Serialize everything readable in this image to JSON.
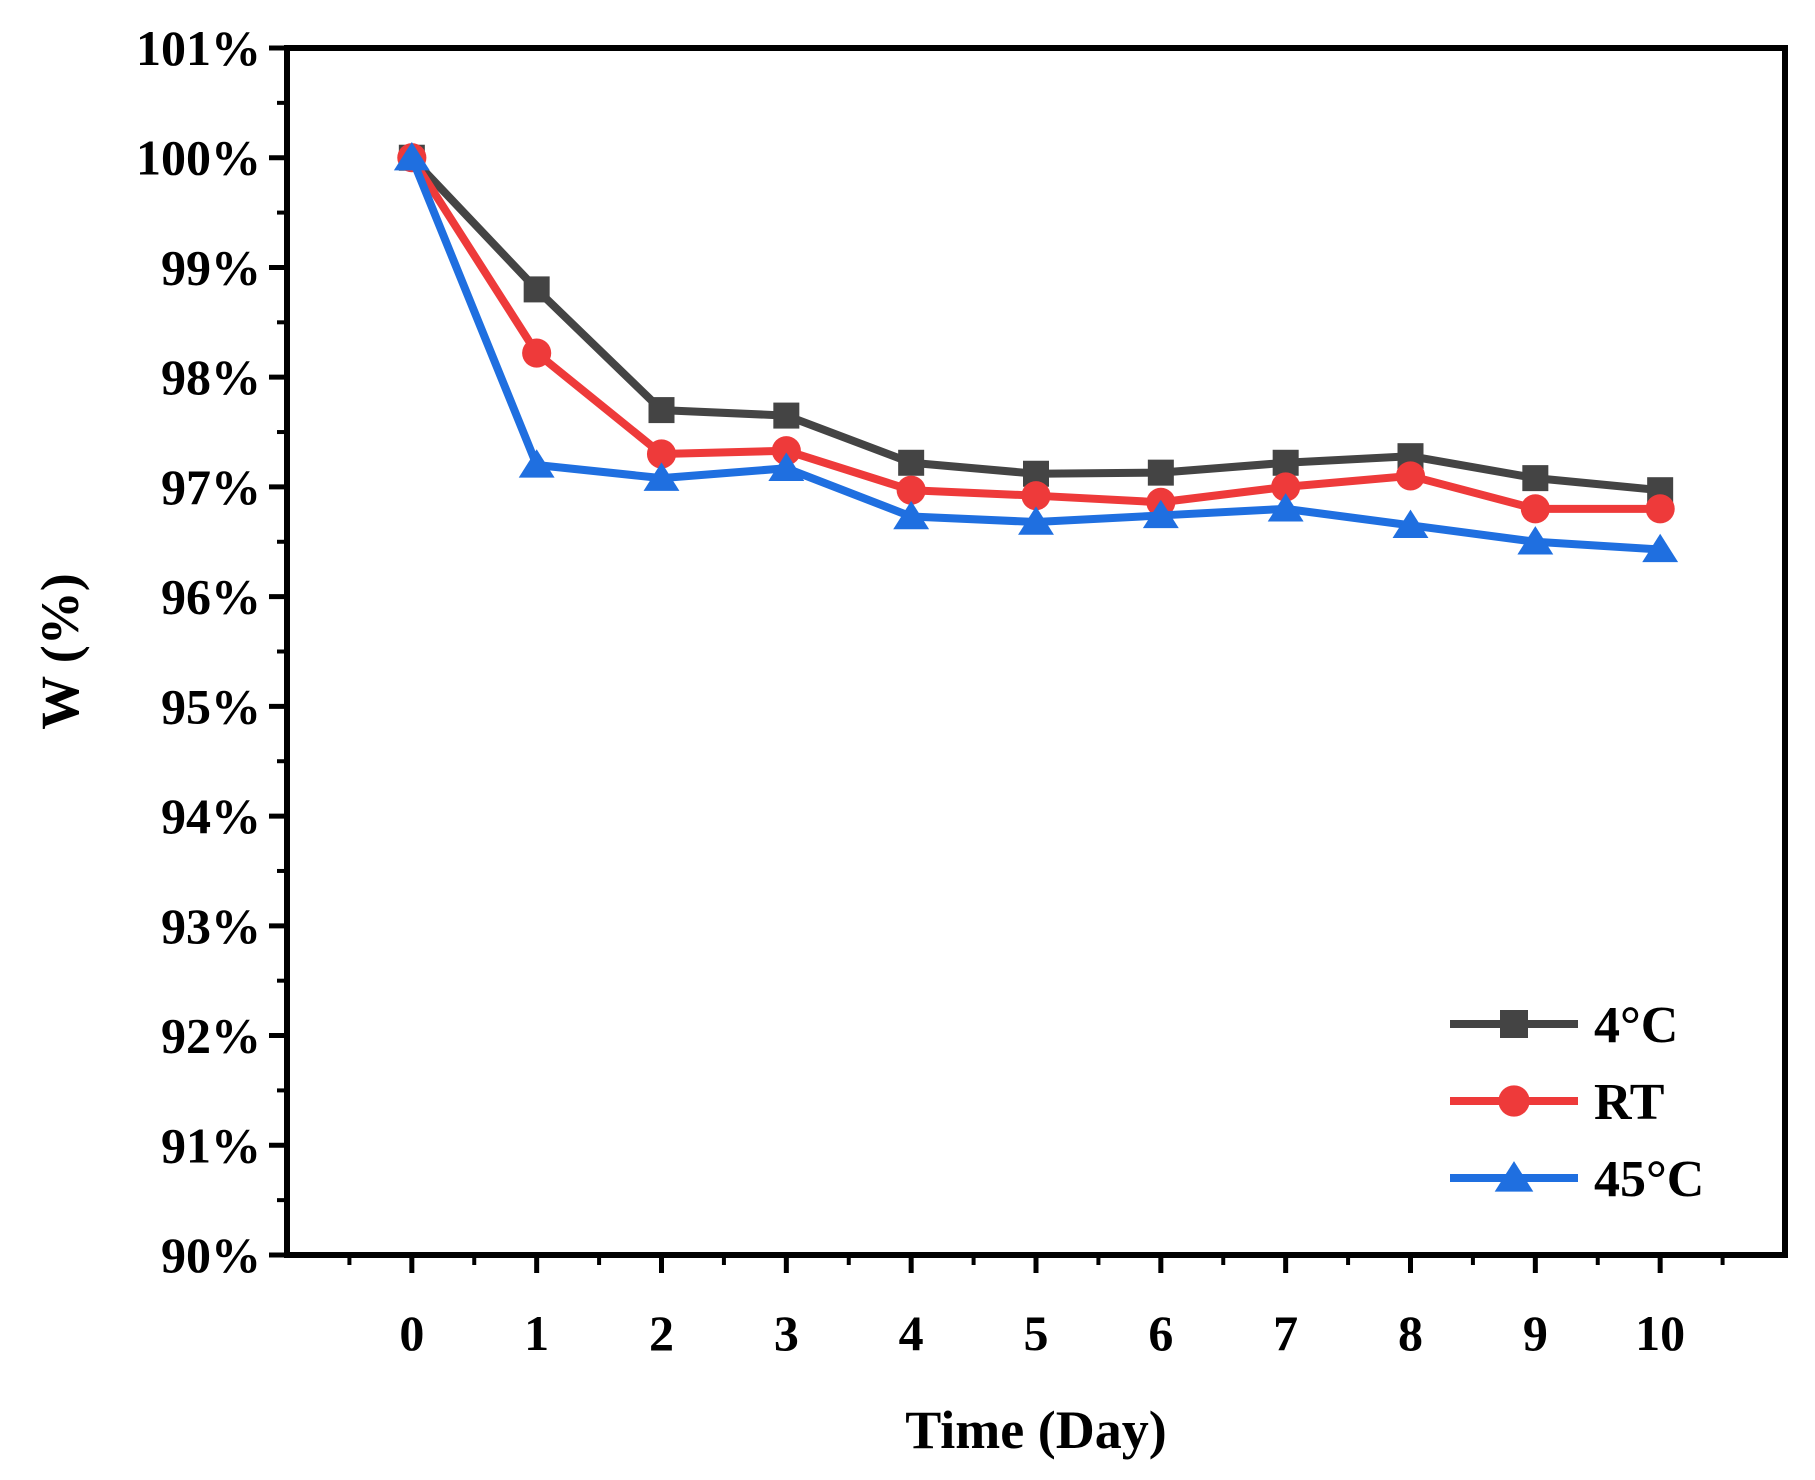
{
  "chart_data": {
    "type": "line",
    "xlabel": "Time (Day)",
    "ylabel": "W (%)",
    "x": [
      0,
      1,
      2,
      3,
      4,
      5,
      6,
      7,
      8,
      9,
      10
    ],
    "x_ticks": [
      "0",
      "1",
      "2",
      "3",
      "4",
      "5",
      "6",
      "7",
      "8",
      "9",
      "10"
    ],
    "xlim": [
      -1,
      11
    ],
    "ylim": [
      90,
      101
    ],
    "y_ticks": [
      {
        "value": 90,
        "label": "90%"
      },
      {
        "value": 91,
        "label": "91%"
      },
      {
        "value": 92,
        "label": "92%"
      },
      {
        "value": 93,
        "label": "93%"
      },
      {
        "value": 94,
        "label": "94%"
      },
      {
        "value": 95,
        "label": "95%"
      },
      {
        "value": 96,
        "label": "96%"
      },
      {
        "value": 97,
        "label": "97%"
      },
      {
        "value": 98,
        "label": "98%"
      },
      {
        "value": 99,
        "label": "99%"
      },
      {
        "value": 100,
        "label": "100%"
      },
      {
        "value": 101,
        "label": "101%"
      }
    ],
    "grid": false,
    "legend_position": "bottom-right",
    "series": [
      {
        "name": "4°C",
        "color": "#444444",
        "marker": "square",
        "values": [
          100.0,
          98.8,
          97.7,
          97.65,
          97.22,
          97.12,
          97.13,
          97.22,
          97.28,
          97.08,
          96.97
        ]
      },
      {
        "name": "RT",
        "color": "#ee3a3a",
        "marker": "circle",
        "values": [
          100.0,
          98.22,
          97.3,
          97.33,
          96.97,
          96.92,
          96.86,
          97.0,
          97.1,
          96.8,
          96.8
        ]
      },
      {
        "name": "45°C",
        "color": "#1f6fe0",
        "marker": "triangle",
        "values": [
          100.0,
          97.2,
          97.08,
          97.17,
          96.73,
          96.68,
          96.74,
          96.8,
          96.65,
          96.5,
          96.43
        ]
      }
    ]
  }
}
